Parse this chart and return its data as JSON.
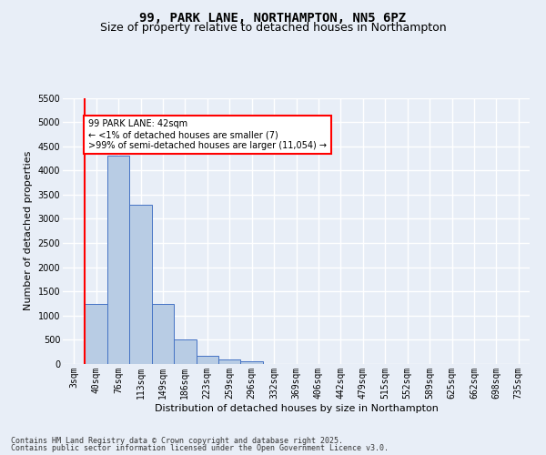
{
  "title1": "99, PARK LANE, NORTHAMPTON, NN5 6PZ",
  "title2": "Size of property relative to detached houses in Northampton",
  "xlabel": "Distribution of detached houses by size in Northampton",
  "ylabel": "Number of detached properties",
  "categories": [
    "3sqm",
    "40sqm",
    "76sqm",
    "113sqm",
    "149sqm",
    "186sqm",
    "223sqm",
    "259sqm",
    "296sqm",
    "332sqm",
    "369sqm",
    "406sqm",
    "442sqm",
    "479sqm",
    "515sqm",
    "552sqm",
    "589sqm",
    "625sqm",
    "662sqm",
    "698sqm",
    "735sqm"
  ],
  "values": [
    0,
    1250,
    4300,
    3300,
    1250,
    500,
    175,
    90,
    60,
    0,
    0,
    0,
    0,
    0,
    0,
    0,
    0,
    0,
    0,
    0,
    0
  ],
  "bar_color": "#b8cce4",
  "bar_edge_color": "#4472c4",
  "annotation_text": "99 PARK LANE: 42sqm\n← <1% of detached houses are smaller (7)\n>99% of semi-detached houses are larger (11,054) →",
  "annotation_box_color": "white",
  "annotation_box_edge_color": "red",
  "subject_line_color": "red",
  "ylim": [
    0,
    5500
  ],
  "yticks": [
    0,
    500,
    1000,
    1500,
    2000,
    2500,
    3000,
    3500,
    4000,
    4500,
    5000,
    5500
  ],
  "footer1": "Contains HM Land Registry data © Crown copyright and database right 2025.",
  "footer2": "Contains public sector information licensed under the Open Government Licence v3.0.",
  "bg_color": "#e8eef7",
  "plot_bg_color": "#e8eef7",
  "grid_color": "white",
  "title_fontsize": 10,
  "subtitle_fontsize": 9,
  "tick_fontsize": 7,
  "label_fontsize": 8,
  "footer_fontsize": 6
}
